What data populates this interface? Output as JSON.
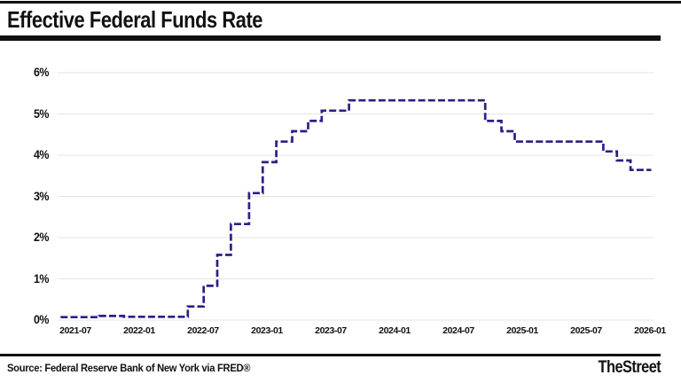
{
  "header": {
    "title": "Effective Federal Funds Rate"
  },
  "footer": {
    "source": "Source: Federal Reserve Bank of New York via FRED®",
    "brand": "TheStreet"
  },
  "chart_data": {
    "type": "line",
    "subtype": "step",
    "title": "Effective Federal Funds Rate",
    "unit": "percent",
    "dashed": true,
    "line_color": "#2b2086",
    "grid_color": "#e4e4e4",
    "label_color": "#111111",
    "legend": "none",
    "grid": "horizontal-only",
    "ylim": [
      0,
      6
    ],
    "yticks": [
      "0%",
      "1%",
      "2%",
      "3%",
      "4%",
      "5%",
      "6%"
    ],
    "xticks": [
      "2021-07",
      "2022-01",
      "2022-07",
      "2023-01",
      "2023-07",
      "2024-01",
      "2024-07",
      "2025-01",
      "2025-07",
      "2026-01"
    ],
    "x_range": [
      "2021-02-18",
      "2026-02-13"
    ],
    "series": [
      {
        "name": "Effective Federal Funds Rate",
        "points": [
          {
            "date": "2021-02-18",
            "value": 0.07
          },
          {
            "date": "2021-06-17",
            "value": 0.1
          },
          {
            "date": "2021-09-01",
            "value": 0.08
          },
          {
            "date": "2022-03-17",
            "value": 0.33
          },
          {
            "date": "2022-05-05",
            "value": 0.83
          },
          {
            "date": "2022-06-16",
            "value": 1.58
          },
          {
            "date": "2022-07-28",
            "value": 2.33
          },
          {
            "date": "2022-09-22",
            "value": 3.08
          },
          {
            "date": "2022-11-03",
            "value": 3.83
          },
          {
            "date": "2022-12-15",
            "value": 4.33
          },
          {
            "date": "2023-02-02",
            "value": 4.58
          },
          {
            "date": "2023-03-23",
            "value": 4.83
          },
          {
            "date": "2023-05-04",
            "value": 5.08
          },
          {
            "date": "2023-07-27",
            "value": 5.33
          },
          {
            "date": "2024-09-19",
            "value": 4.83
          },
          {
            "date": "2024-11-08",
            "value": 4.58
          },
          {
            "date": "2024-12-19",
            "value": 4.33
          },
          {
            "date": "2025-09-18",
            "value": 4.09
          },
          {
            "date": "2025-10-30",
            "value": 3.87
          },
          {
            "date": "2025-12-11",
            "value": 3.64
          }
        ]
      }
    ]
  }
}
